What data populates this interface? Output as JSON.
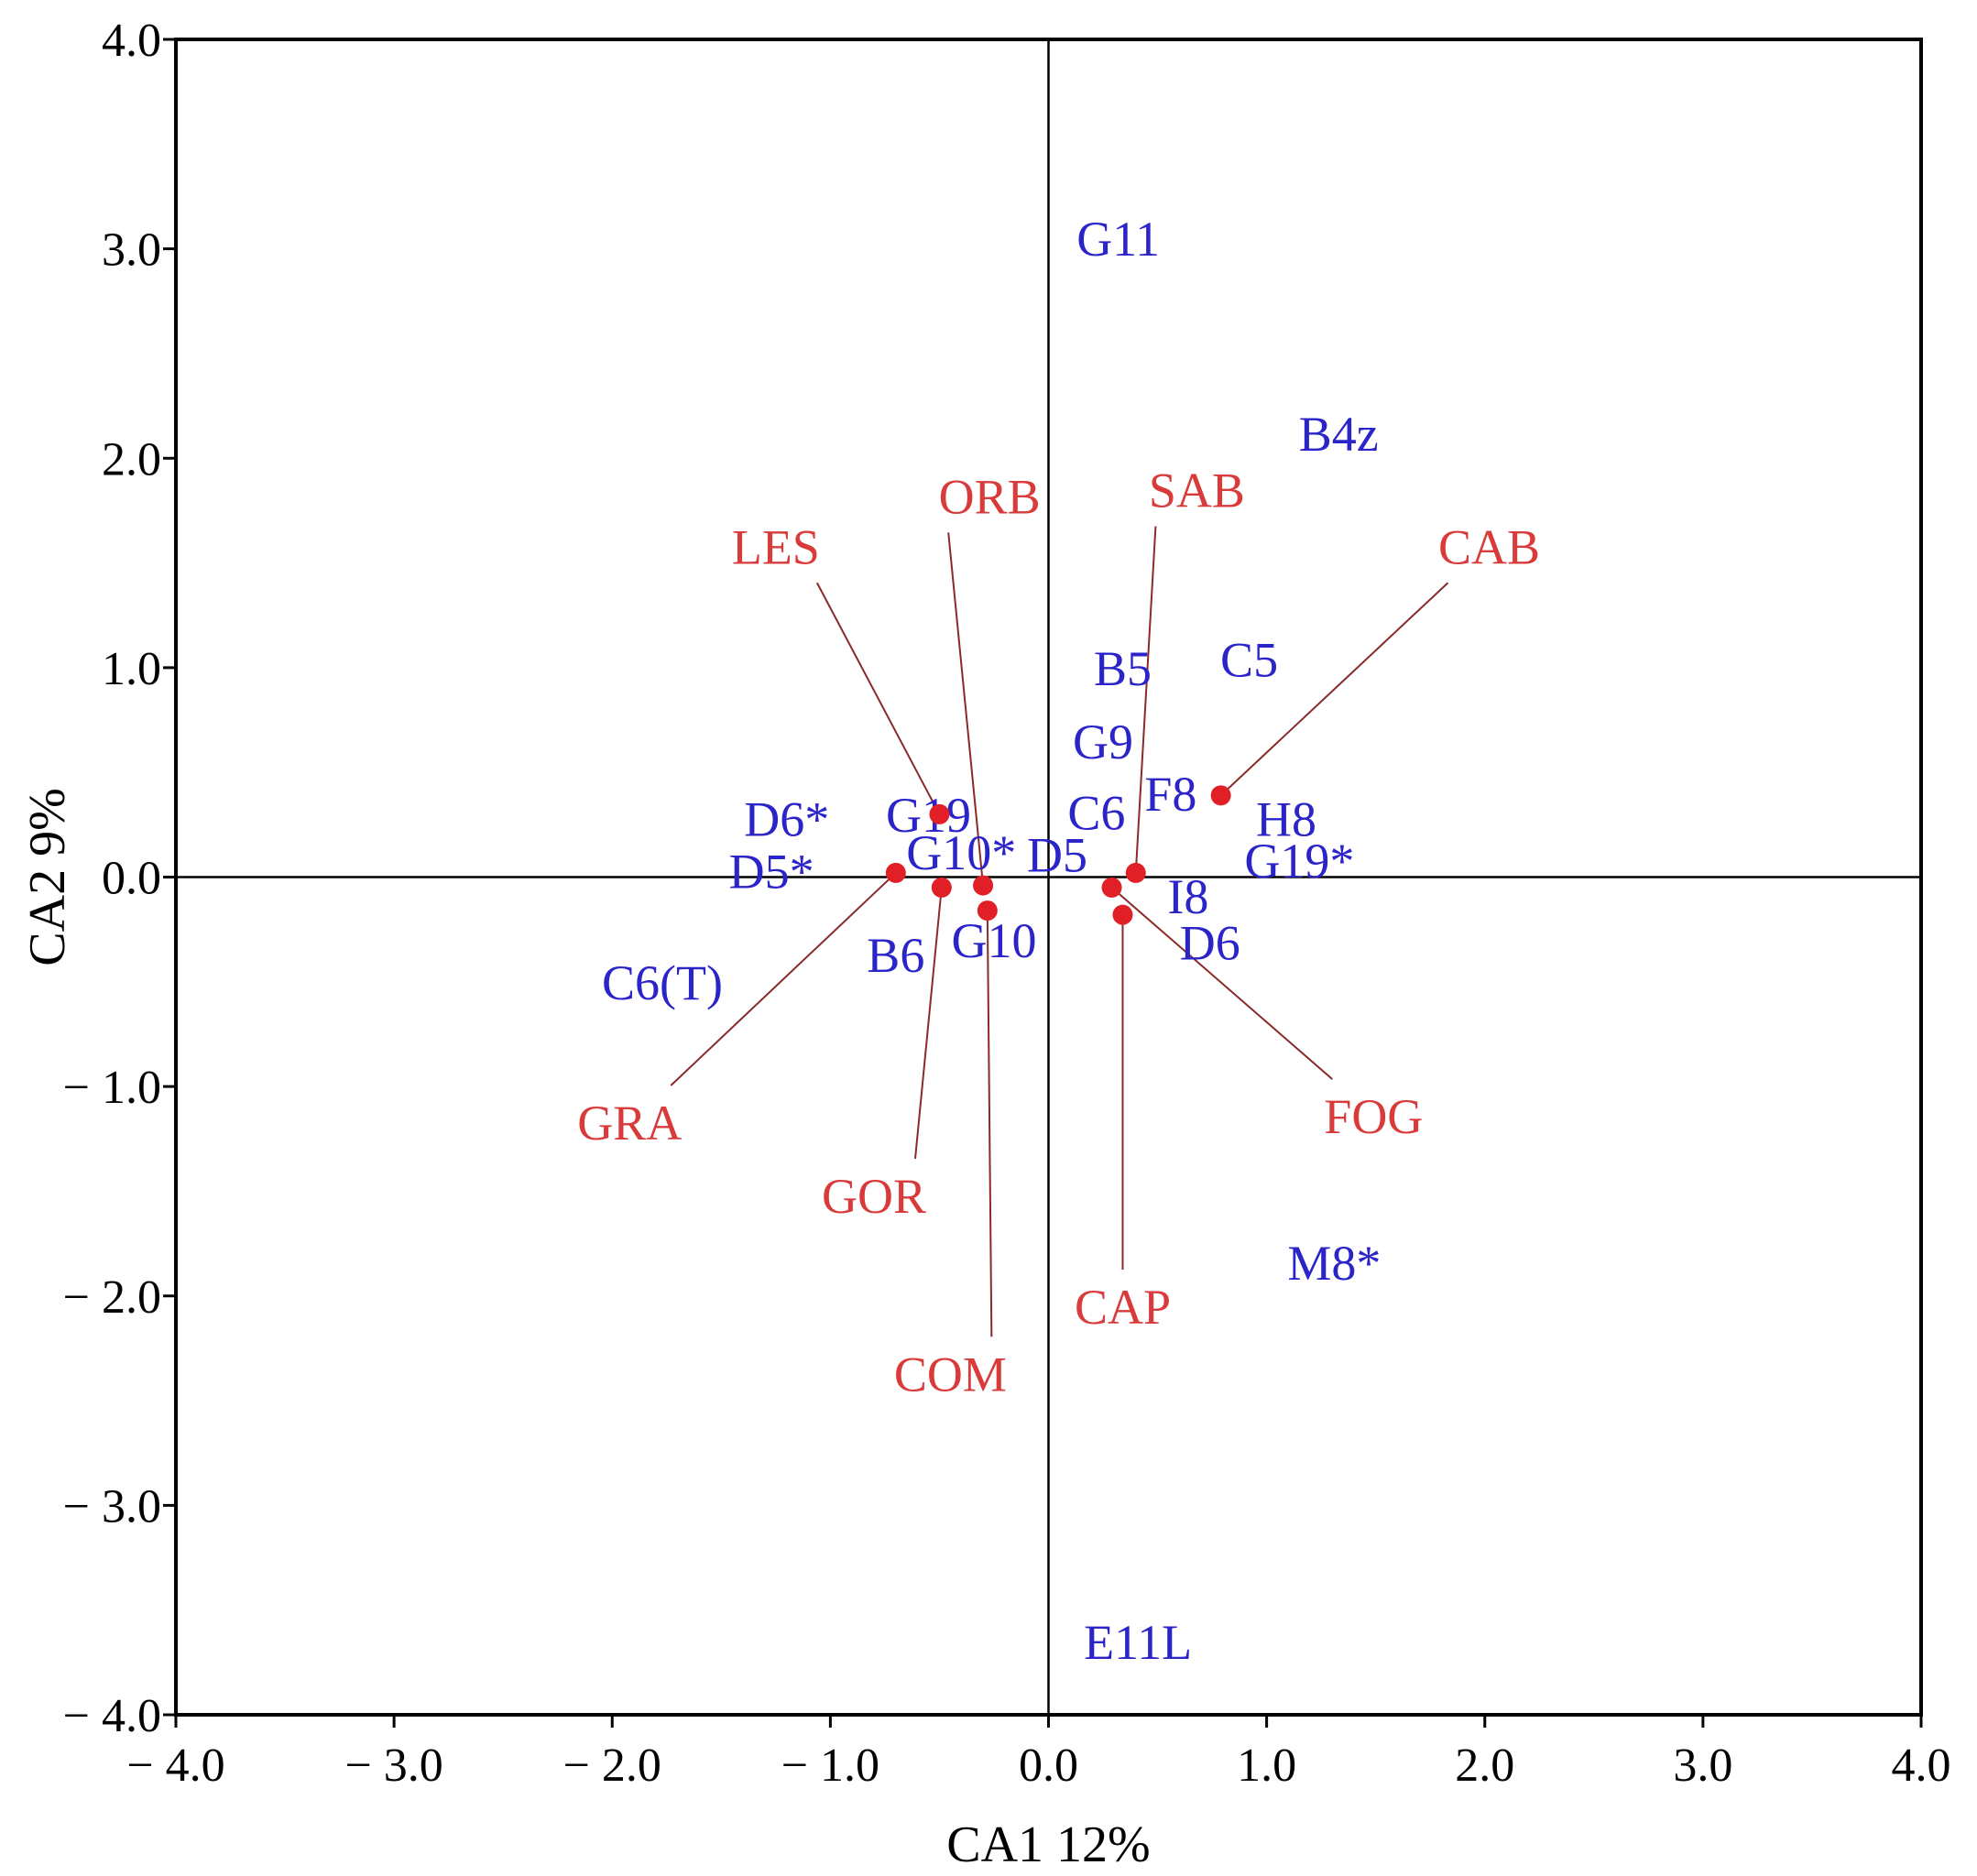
{
  "chart_data": {
    "type": "scatter",
    "title": "",
    "xlabel": "CA1 12%",
    "ylabel": "CA2 9%",
    "xlim": [
      -4.0,
      4.0
    ],
    "ylim": [
      -4.0,
      4.0
    ],
    "x_ticks": [
      -4.0,
      -3.0,
      -2.0,
      -1.0,
      0.0,
      1.0,
      2.0,
      3.0,
      4.0
    ],
    "y_ticks": [
      -4.0,
      -3.0,
      -2.0,
      -1.0,
      0.0,
      1.0,
      2.0,
      3.0,
      4.0
    ],
    "x_tick_labels": [
      "− 4.0",
      "− 3.0",
      "− 2.0",
      "− 1.0",
      "0.0",
      "1.0",
      "2.0",
      "3.0",
      "4.0"
    ],
    "y_tick_labels": [
      "− 4.0",
      "− 3.0",
      "− 2.0",
      "− 1.0",
      "0.0",
      "1.0",
      "2.0",
      "3.0",
      "4.0"
    ],
    "grid": false,
    "zero_lines": true,
    "colors": {
      "sites": "#2b24c8",
      "species": "#d93a3a",
      "species_point": "#e01f26",
      "leader": "#8a2a2a",
      "axis": "#000000"
    },
    "sites": [
      {
        "label": "G11",
        "x": 0.32,
        "y": 3.05
      },
      {
        "label": "B4z",
        "x": 1.33,
        "y": 2.12
      },
      {
        "label": "B5",
        "x": 0.34,
        "y": 1.0
      },
      {
        "label": "C5",
        "x": 0.92,
        "y": 1.04
      },
      {
        "label": "G9",
        "x": 0.25,
        "y": 0.65
      },
      {
        "label": "F8",
        "x": 0.56,
        "y": 0.4
      },
      {
        "label": "C6",
        "x": 0.22,
        "y": 0.31
      },
      {
        "label": "H8",
        "x": 1.09,
        "y": 0.28
      },
      {
        "label": "G19*",
        "x": 1.15,
        "y": 0.08
      },
      {
        "label": "I8",
        "x": 0.64,
        "y": -0.09
      },
      {
        "label": "D6",
        "x": 0.74,
        "y": -0.31
      },
      {
        "label": "D6*",
        "x": -1.2,
        "y": 0.28
      },
      {
        "label": "G19",
        "x": -0.55,
        "y": 0.3
      },
      {
        "label": "G10*",
        "x": -0.4,
        "y": 0.12
      },
      {
        "label": "D5",
        "x": 0.04,
        "y": 0.11
      },
      {
        "label": "D5*",
        "x": -1.27,
        "y": 0.03
      },
      {
        "label": "B6",
        "x": -0.7,
        "y": -0.37
      },
      {
        "label": "G10",
        "x": -0.25,
        "y": -0.3
      },
      {
        "label": "C6(T)",
        "x": -1.77,
        "y": -0.5
      },
      {
        "label": "M8*",
        "x": 1.31,
        "y": -1.84
      },
      {
        "label": "E11L",
        "x": 0.41,
        "y": -3.65
      }
    ],
    "species": [
      {
        "label": "LES",
        "x": -0.5,
        "y": 0.3,
        "label_x": -1.25,
        "label_y": 1.58
      },
      {
        "label": "ORB",
        "x": -0.3,
        "y": -0.04,
        "label_x": -0.27,
        "label_y": 1.82
      },
      {
        "label": "SAB",
        "x": 0.4,
        "y": 0.02,
        "label_x": 0.68,
        "label_y": 1.85
      },
      {
        "label": "CAB",
        "x": 0.79,
        "y": 0.39,
        "label_x": 2.02,
        "label_y": 1.58
      },
      {
        "label": "GRA",
        "x": -0.7,
        "y": 0.02,
        "label_x": -1.92,
        "label_y": -1.17
      },
      {
        "label": "GOR",
        "x": -0.49,
        "y": -0.05,
        "label_x": -0.8,
        "label_y": -1.52
      },
      {
        "label": "COM",
        "x": -0.28,
        "y": -0.16,
        "label_x": -0.45,
        "label_y": -2.37
      },
      {
        "label": "CAP",
        "x": 0.34,
        "y": -0.18,
        "label_x": 0.34,
        "label_y": -2.05
      },
      {
        "label": "FOG",
        "x": 0.29,
        "y": -0.05,
        "label_x": 1.49,
        "label_y": -1.14
      }
    ]
  }
}
